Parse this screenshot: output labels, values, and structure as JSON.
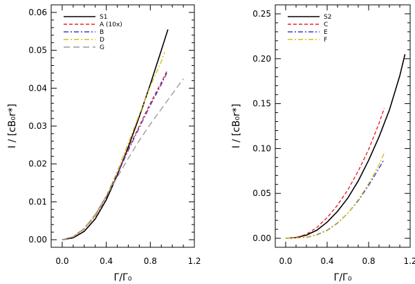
{
  "chart_data": [
    {
      "type": "line",
      "xlim": [
        -0.1,
        1.2
      ],
      "ylim": [
        -0.002,
        0.062
      ],
      "xticks": [
        0.0,
        0.4,
        0.8,
        1.2
      ],
      "xtick_labels": [
        "0.0",
        "0.4",
        "0.8",
        "1.2"
      ],
      "yticks": [
        0.0,
        0.01,
        0.02,
        0.03,
        0.04,
        0.05,
        0.06
      ],
      "ytick_labels": [
        "0.00",
        "0.01",
        "0.02",
        "0.03",
        "0.04",
        "0.05",
        "0.06"
      ],
      "xlabel": "Γ/Γ₀",
      "ylabel": "I / [cB₀r*]",
      "legend_position": "top-left",
      "series": [
        {
          "name": "S1",
          "color": "#000000",
          "dash": "solid",
          "x": [
            0.0,
            0.1,
            0.2,
            0.3,
            0.4,
            0.5,
            0.6,
            0.7,
            0.8,
            0.9,
            0.96
          ],
          "y": [
            0.0,
            0.0005,
            0.0022,
            0.0055,
            0.0105,
            0.017,
            0.0245,
            0.0325,
            0.041,
            0.05,
            0.0555
          ]
        },
        {
          "name": "A (10x)",
          "color": "#e8202a",
          "dash": "dashed",
          "x": [
            0.0,
            0.1,
            0.2,
            0.3,
            0.4,
            0.5,
            0.6,
            0.7,
            0.8,
            0.9,
            0.95
          ],
          "y": [
            0.0,
            0.0008,
            0.003,
            0.0065,
            0.0115,
            0.0175,
            0.024,
            0.03,
            0.036,
            0.0415,
            0.0445
          ]
        },
        {
          "name": "B",
          "color": "#3a3ac8",
          "dash": "dashdot",
          "x": [
            0.0,
            0.1,
            0.2,
            0.3,
            0.4,
            0.5,
            0.6,
            0.7,
            0.8,
            0.9,
            0.95
          ],
          "y": [
            0.0,
            0.0007,
            0.0028,
            0.0062,
            0.0112,
            0.0172,
            0.0236,
            0.0296,
            0.0355,
            0.041,
            0.044
          ]
        },
        {
          "name": "D",
          "color": "#d4c010",
          "dash": "dashdot",
          "x": [
            0.0,
            0.1,
            0.2,
            0.3,
            0.4,
            0.5,
            0.6,
            0.7,
            0.8,
            0.9,
            0.93
          ],
          "y": [
            0.0,
            0.0007,
            0.0028,
            0.0063,
            0.0115,
            0.018,
            0.0255,
            0.033,
            0.0405,
            0.047,
            0.0495
          ]
        },
        {
          "name": "G",
          "color": "#9a9a9a",
          "dash": "longdash",
          "x": [
            0.0,
            0.1,
            0.2,
            0.3,
            0.4,
            0.5,
            0.6,
            0.7,
            0.8,
            0.9,
            1.0,
            1.1
          ],
          "y": [
            0.0,
            0.0008,
            0.003,
            0.0067,
            0.0115,
            0.0165,
            0.0215,
            0.0262,
            0.0305,
            0.0345,
            0.0385,
            0.0425
          ]
        }
      ]
    },
    {
      "type": "line",
      "xlim": [
        -0.1,
        1.2
      ],
      "ylim": [
        -0.01,
        0.26
      ],
      "xticks": [
        0.0,
        0.4,
        0.8,
        1.2
      ],
      "xtick_labels": [
        "0.0",
        "0.4",
        "0.8",
        "1.2"
      ],
      "yticks": [
        0.0,
        0.05,
        0.1,
        0.15,
        0.2,
        0.25
      ],
      "ytick_labels": [
        "0.00",
        "0.05",
        "0.10",
        "0.15",
        "0.20",
        "0.25"
      ],
      "xlabel": "Γ/Γ₀",
      "ylabel": "I / [cB₀r*]",
      "legend_position": "top-left",
      "series": [
        {
          "name": "S2",
          "color": "#000000",
          "dash": "solid",
          "x": [
            0.0,
            0.1,
            0.2,
            0.3,
            0.4,
            0.5,
            0.6,
            0.7,
            0.8,
            0.9,
            1.0,
            1.1,
            1.15
          ],
          "y": [
            0.0,
            0.0008,
            0.0035,
            0.009,
            0.018,
            0.03,
            0.045,
            0.064,
            0.087,
            0.113,
            0.143,
            0.181,
            0.205
          ]
        },
        {
          "name": "C",
          "color": "#e8202a",
          "dash": "dashed",
          "x": [
            0.0,
            0.1,
            0.2,
            0.3,
            0.4,
            0.5,
            0.6,
            0.7,
            0.8,
            0.9,
            0.95
          ],
          "y": [
            0.0,
            0.001,
            0.0045,
            0.012,
            0.023,
            0.037,
            0.054,
            0.075,
            0.099,
            0.128,
            0.145
          ]
        },
        {
          "name": "E",
          "color": "#3a3ac8",
          "dash": "dashdot",
          "x": [
            0.0,
            0.2,
            0.3,
            0.4,
            0.5,
            0.6,
            0.7,
            0.8,
            0.9,
            0.95
          ],
          "y": [
            0.0,
            0.001,
            0.004,
            0.009,
            0.017,
            0.028,
            0.042,
            0.059,
            0.078,
            0.088
          ]
        },
        {
          "name": "F",
          "color": "#d4c010",
          "dash": "dashdot",
          "x": [
            0.0,
            0.2,
            0.3,
            0.4,
            0.5,
            0.6,
            0.7,
            0.8,
            0.9,
            0.95
          ],
          "y": [
            0.0,
            0.0008,
            0.0035,
            0.0085,
            0.0165,
            0.028,
            0.043,
            0.061,
            0.082,
            0.095
          ]
        }
      ]
    }
  ]
}
